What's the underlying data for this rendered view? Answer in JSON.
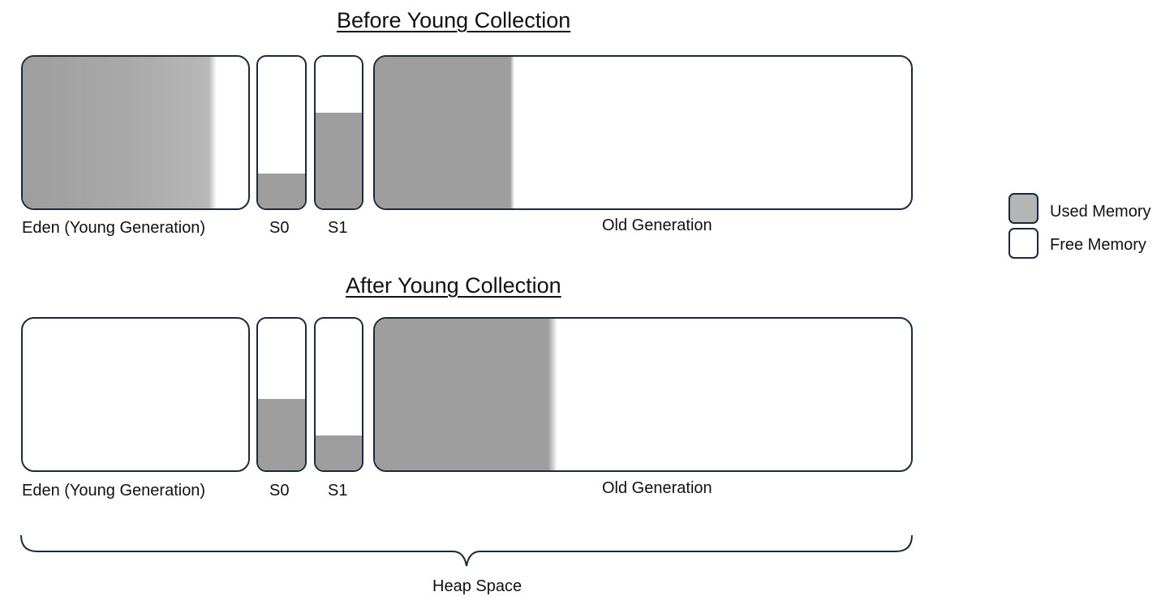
{
  "before": {
    "title": "Before Young Collection",
    "eden_label": "Eden (Young Generation)",
    "s0_label": "S0",
    "s1_label": "S1",
    "old_label": "Old Generation",
    "eden_used_fraction": 0.86,
    "s0_used_fraction": 0.23,
    "s1_used_fraction": 0.63,
    "old_used_fraction": 0.26
  },
  "after": {
    "title": "After Young Collection",
    "eden_label": "Eden (Young Generation)",
    "s0_label": "S0",
    "s1_label": "S1",
    "old_label": "Old Generation",
    "eden_used_fraction": 0.0,
    "s0_used_fraction": 0.47,
    "s1_used_fraction": 0.23,
    "old_used_fraction": 0.34
  },
  "legend": {
    "used_label": "Used Memory",
    "free_label": "Free Memory",
    "used_color": "#b5b5b5",
    "free_color": "#ffffff"
  },
  "heap_label": "Heap Space",
  "colors": {
    "used_fill": "#9e9e9e",
    "border": "#1b2a3a"
  }
}
